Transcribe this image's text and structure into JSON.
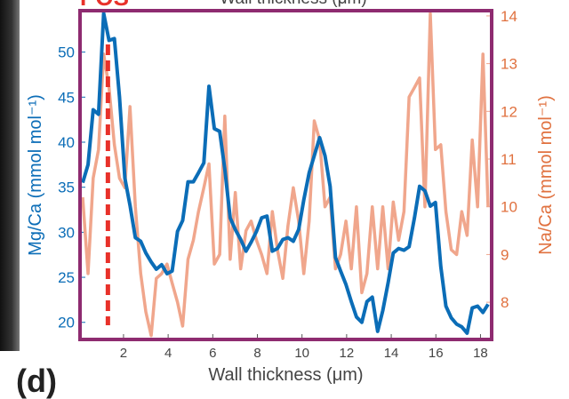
{
  "chart_data": {
    "type": "line",
    "panel_label": "(d)",
    "top_label": "POS",
    "top_xlabel": "Wall thickness (μm)",
    "xlabel": "Wall thickness (μm)",
    "ylabel": "Mg/Ca (mmol mol⁻¹)",
    "y2label": "Na/Ca (mmol mol⁻¹)",
    "xlim": [
      0.05,
      18.5
    ],
    "xticks": [
      2,
      4,
      6,
      8,
      10,
      12,
      14,
      16,
      18
    ],
    "ylim": [
      18.1,
      54.6
    ],
    "yticks": [
      20,
      25,
      30,
      35,
      40,
      45,
      50
    ],
    "y2lim": [
      7.22,
      14.11
    ],
    "y2ticks": [
      8,
      9,
      10,
      11,
      12,
      13,
      14
    ],
    "frame_color": "#8e2b70",
    "vline": {
      "x": 1.3,
      "color": "#e8312a"
    },
    "x": [
      0.17,
      0.41,
      0.64,
      0.88,
      1.11,
      1.35,
      1.59,
      1.82,
      2.06,
      2.29,
      2.53,
      2.77,
      3.0,
      3.24,
      3.47,
      3.71,
      3.95,
      4.18,
      4.42,
      4.65,
      4.89,
      5.13,
      5.36,
      5.6,
      5.83,
      6.07,
      6.31,
      6.54,
      6.78,
      7.01,
      7.25,
      7.49,
      7.72,
      7.96,
      8.19,
      8.43,
      8.67,
      8.9,
      9.14,
      9.37,
      9.61,
      9.85,
      10.08,
      10.32,
      10.55,
      10.79,
      11.03,
      11.26,
      11.5,
      11.73,
      11.97,
      12.21,
      12.44,
      12.68,
      12.91,
      13.15,
      13.39,
      13.62,
      13.86,
      14.09,
      14.33,
      14.57,
      14.8,
      15.04,
      15.27,
      15.51,
      15.75,
      15.98,
      16.22,
      16.45,
      16.69,
      16.93,
      17.16,
      17.4,
      17.63,
      17.87,
      18.11,
      18.34
    ],
    "series": [
      {
        "name": "Na/Ca",
        "color": "#f0a68c",
        "axis": "y2",
        "values": [
          10.2,
          8.6,
          10.6,
          11.2,
          13.2,
          12.5,
          11.3,
          10.6,
          10.4,
          12.1,
          10.0,
          8.6,
          7.8,
          7.3,
          8.5,
          8.6,
          8.8,
          8.4,
          8.0,
          7.5,
          8.9,
          9.3,
          9.9,
          10.4,
          10.9,
          8.8,
          9.0,
          11.9,
          8.9,
          10.3,
          8.7,
          9.5,
          9.7,
          9.3,
          9.0,
          8.6,
          9.9,
          9.1,
          8.5,
          9.6,
          10.4,
          9.7,
          8.6,
          9.7,
          11.8,
          11.4,
          10.0,
          10.2,
          8.7,
          9.0,
          9.7,
          8.7,
          10.0,
          8.2,
          8.6,
          10.0,
          8.7,
          10.0,
          8.7,
          10.1,
          9.3,
          9.9,
          12.3,
          12.5,
          12.7,
          10.0,
          14.05,
          11.2,
          11.3,
          9.9,
          9.1,
          9.0,
          9.9,
          9.4,
          11.4,
          10.0,
          13.2,
          10.0
        ]
      },
      {
        "name": "Mg/Ca",
        "color": "#0b6db7",
        "axis": "y",
        "values": [
          35.5,
          37.5,
          43.6,
          43.1,
          54.3,
          51.3,
          51.5,
          45,
          36,
          33,
          29.4,
          29,
          27.7,
          26.7,
          25.9,
          26.4,
          25.4,
          25.7,
          30.1,
          31.3,
          35.6,
          35.6,
          36.6,
          37.7,
          46.2,
          41.5,
          41.2,
          37,
          31.6,
          30.3,
          29.2,
          27.9,
          28.9,
          30.1,
          31.6,
          31.8,
          27.9,
          28.2,
          29.2,
          29.4,
          29,
          30.3,
          33.6,
          36.6,
          38.5,
          40.5,
          38.5,
          35.1,
          27.2,
          25.7,
          24.2,
          22.3,
          20.6,
          20,
          22.3,
          22.8,
          19,
          21.3,
          24.4,
          27.7,
          28.2,
          28,
          28.4,
          31.6,
          35.1,
          34.6,
          32.9,
          33.3,
          26.2,
          21.8,
          20.5,
          19.8,
          19.5,
          18.8,
          21.6,
          21.8,
          21.1,
          22
        ]
      }
    ]
  }
}
